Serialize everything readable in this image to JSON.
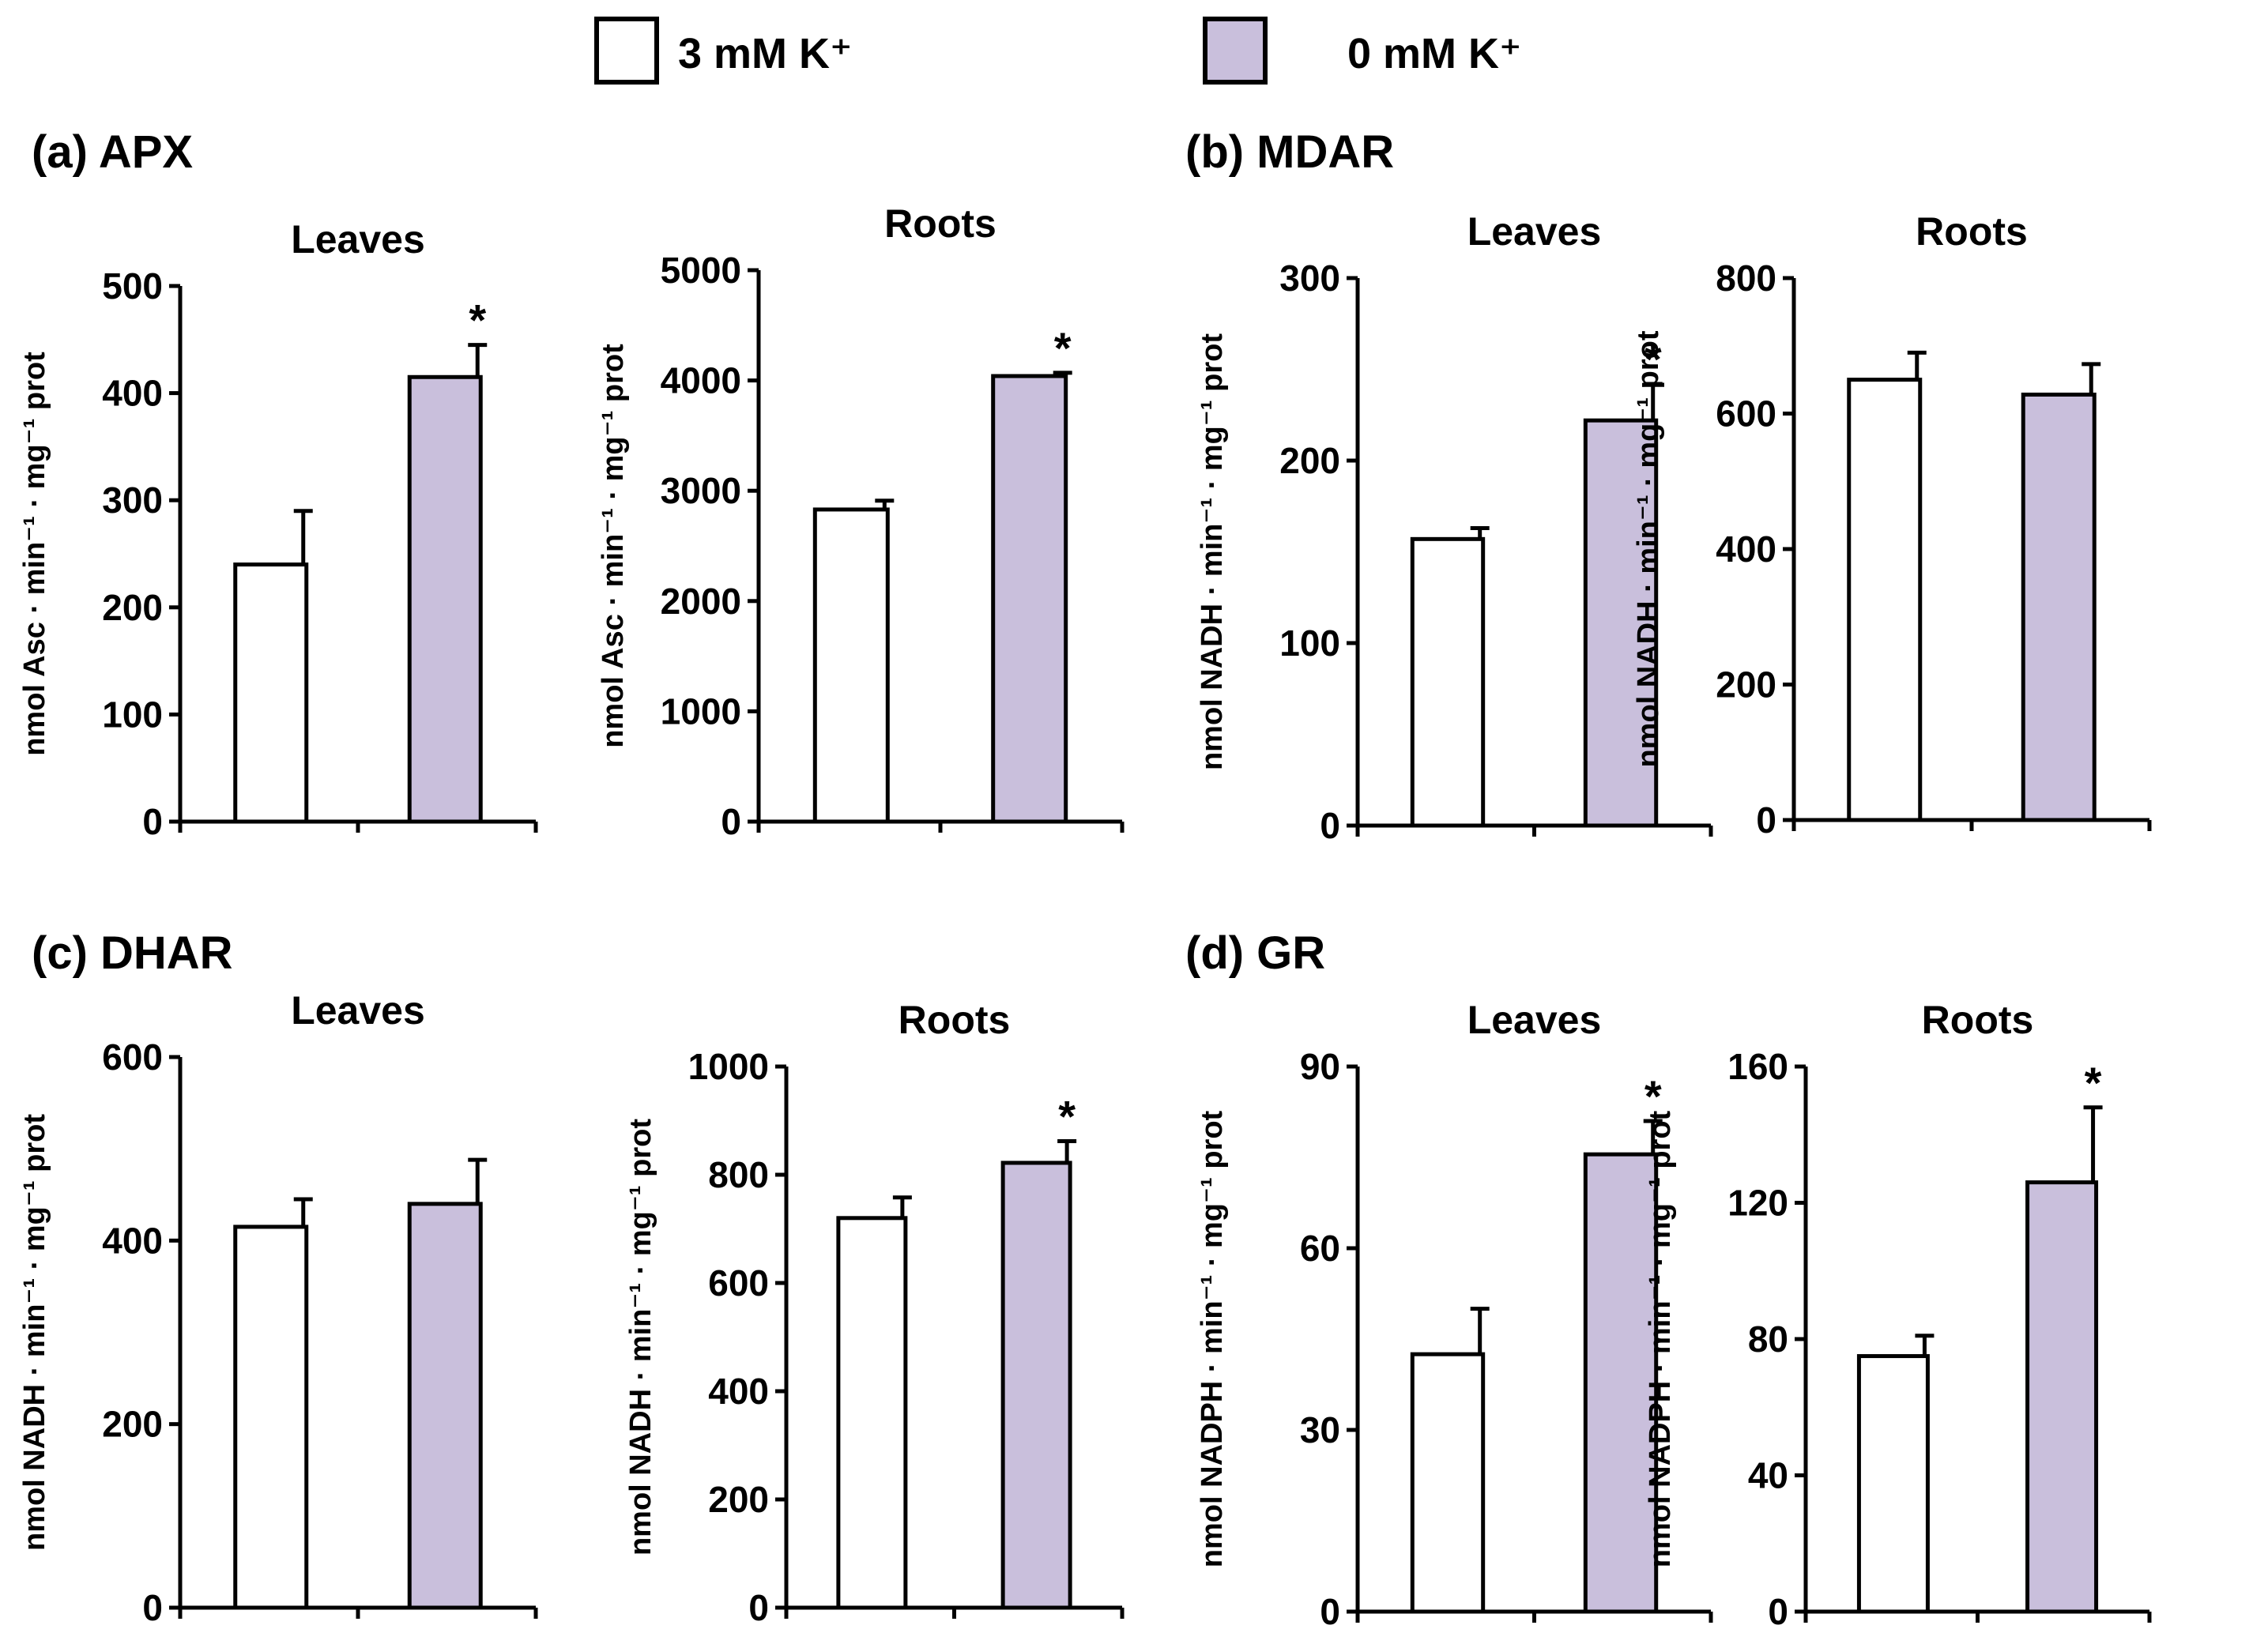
{
  "legend": [
    {
      "label": "3 mM K⁺",
      "color": "#ffffff"
    },
    {
      "label": "0 mM K⁺",
      "color": "#c9bfdc"
    }
  ],
  "colors": {
    "control": "#ffffff",
    "deficient": "#c9bfdc",
    "stroke": "#000000"
  },
  "panels": [
    {
      "id": "apx",
      "title": "(a) APX"
    },
    {
      "id": "mdar",
      "title": "(b) MDAR"
    },
    {
      "id": "dhar",
      "title": "(c) DHAR"
    },
    {
      "id": "gr",
      "title": "(d) GR"
    }
  ],
  "chart_data": [
    {
      "panel": "(a) APX",
      "type": "bar",
      "title": "Leaves",
      "ylabel": "nmol Asc · min⁻¹ · mg⁻¹ prot",
      "ylim": [
        0,
        500
      ],
      "yticks": [
        0,
        100,
        200,
        300,
        400,
        500
      ],
      "yticklabels": [
        "0",
        "100",
        "200",
        "300",
        "400",
        "500"
      ],
      "series": [
        {
          "name": "3 mM K⁺",
          "value": 240,
          "error": 50,
          "sig": ""
        },
        {
          "name": "0 mM K⁺",
          "value": 415,
          "error": 30,
          "sig": "*"
        }
      ]
    },
    {
      "panel": "(a) APX",
      "type": "bar",
      "title": "Roots",
      "ylabel": "nmol Asc · min⁻¹ · mg⁻¹ prot",
      "ylim": [
        0,
        5000
      ],
      "yticks": [
        0,
        1000,
        2000,
        3000,
        4000,
        5000
      ],
      "yticklabels": [
        "0",
        "1000",
        "2000",
        "3000",
        "4000",
        "5000"
      ],
      "series": [
        {
          "name": "3 mM K⁺",
          "value": 2830,
          "error": 80,
          "sig": ""
        },
        {
          "name": "0 mM K⁺",
          "value": 4040,
          "error": 30,
          "sig": "*"
        }
      ]
    },
    {
      "panel": "(b) MDAR",
      "type": "bar",
      "title": "Leaves",
      "ylabel": "nmol NADH · min⁻¹ · mg⁻¹ prot",
      "ylim": [
        0,
        300
      ],
      "yticks": [
        0,
        100,
        200,
        300
      ],
      "yticklabels": [
        "0",
        "100",
        "200",
        "300"
      ],
      "series": [
        {
          "name": "3 mM K⁺",
          "value": 157,
          "error": 6,
          "sig": ""
        },
        {
          "name": "0 mM K⁺",
          "value": 222,
          "error": 20,
          "sig": "*"
        }
      ]
    },
    {
      "panel": "(b) MDAR",
      "type": "bar",
      "title": "Roots",
      "ylabel": "nmol NADH · min⁻¹ · mg⁻¹ prot",
      "ylim": [
        0,
        800
      ],
      "yticks": [
        0,
        200,
        400,
        600,
        800
      ],
      "yticklabels": [
        "0",
        "200",
        "400",
        "600",
        "800"
      ],
      "series": [
        {
          "name": "3 mM K⁺",
          "value": 650,
          "error": 40,
          "sig": ""
        },
        {
          "name": "0 mM K⁺",
          "value": 628,
          "error": 45,
          "sig": ""
        }
      ]
    },
    {
      "panel": "(c) DHAR",
      "type": "bar",
      "title": "Leaves",
      "ylabel": "nmol NADH · min⁻¹ · mg⁻¹ prot",
      "ylim": [
        0,
        600
      ],
      "yticks": [
        0,
        200,
        400,
        600
      ],
      "yticklabels": [
        "0",
        "200",
        "400",
        "600"
      ],
      "series": [
        {
          "name": "3 mM K⁺",
          "value": 415,
          "error": 30,
          "sig": ""
        },
        {
          "name": "0 mM K⁺",
          "value": 440,
          "error": 48,
          "sig": ""
        }
      ]
    },
    {
      "panel": "(c) DHAR",
      "type": "bar",
      "title": "Roots",
      "ylabel": "nmol NADH · min⁻¹ · mg⁻¹ prot",
      "ylim": [
        0,
        1000
      ],
      "yticks": [
        0,
        200,
        400,
        600,
        800,
        1000
      ],
      "yticklabels": [
        "0",
        "200",
        "400",
        "600",
        "800",
        "1000"
      ],
      "series": [
        {
          "name": "3 mM K⁺",
          "value": 720,
          "error": 38,
          "sig": ""
        },
        {
          "name": "0 mM K⁺",
          "value": 822,
          "error": 40,
          "sig": "*"
        }
      ]
    },
    {
      "panel": "(d) GR",
      "type": "bar",
      "title": "Leaves",
      "ylabel": "nmol NADPH · min⁻¹ · mg⁻¹ prot",
      "ylim": [
        0,
        90
      ],
      "yticks": [
        0,
        30,
        60,
        90
      ],
      "yticklabels": [
        "0",
        "30",
        "60",
        "90"
      ],
      "series": [
        {
          "name": "3 mM K⁺",
          "value": 42.5,
          "error": 7.5,
          "sig": ""
        },
        {
          "name": "0 mM K⁺",
          "value": 75.5,
          "error": 5.5,
          "sig": "*"
        }
      ]
    },
    {
      "panel": "(d) GR",
      "type": "bar",
      "title": "Roots",
      "ylabel": "nmol NADPH · min⁻¹ · mg⁻¹ prot",
      "ylim": [
        0,
        160
      ],
      "yticks": [
        0,
        40,
        80,
        120,
        160
      ],
      "yticklabels": [
        "0",
        "40",
        "80",
        "120",
        "160"
      ],
      "series": [
        {
          "name": "3 mM K⁺",
          "value": 75,
          "error": 6,
          "sig": ""
        },
        {
          "name": "0 mM K⁺",
          "value": 126,
          "error": 22,
          "sig": "*"
        }
      ]
    }
  ]
}
